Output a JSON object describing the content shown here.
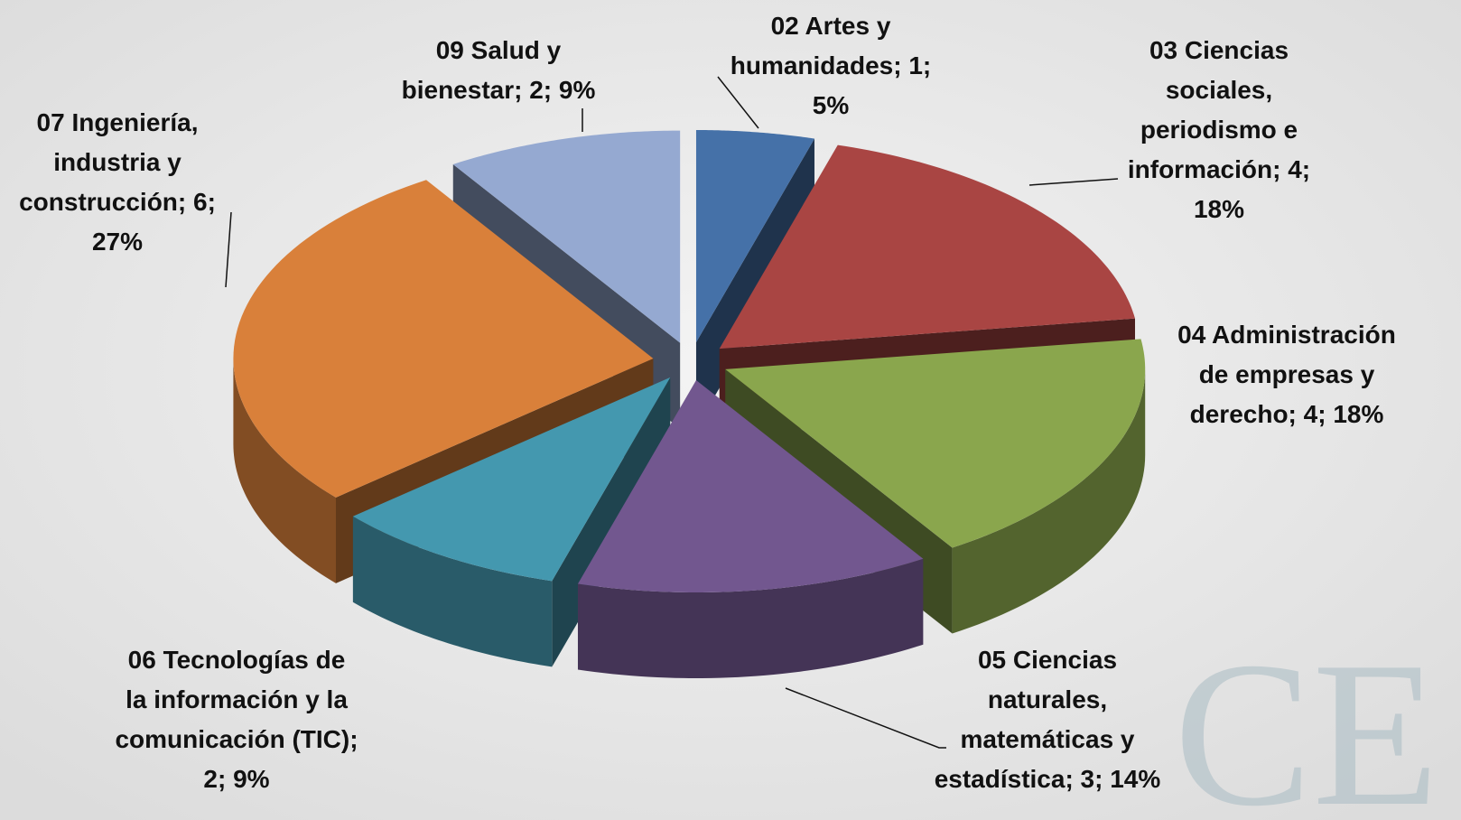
{
  "chart_data": {
    "type": "pie3d",
    "labels": [
      [
        "02 Artes y",
        "humanidades; 1;",
        "5%"
      ],
      [
        "03 Ciencias",
        "sociales,",
        "periodismo e",
        "información; 4;",
        "18%"
      ],
      [
        "04 Administración",
        "de empresas y",
        "derecho; 4; 18%"
      ],
      [
        "05 Ciencias",
        "naturales,",
        "matemáticas y",
        "estadística; 3; 14%"
      ],
      [
        "06 Tecnologías de",
        "la información y la",
        "comunicación (TIC);",
        "2; 9%"
      ],
      [
        "07 Ingeniería,",
        "industria y",
        "construcción; 6;",
        "27%"
      ],
      [
        "09 Salud y",
        "bienestar; 2; 9%"
      ]
    ],
    "values": [
      1,
      4,
      4,
      3,
      2,
      6,
      2
    ],
    "colors": [
      "#4571a8",
      "#a94543",
      "#8aa64d",
      "#72578f",
      "#4498af",
      "#d9803a",
      "#95a9d1"
    ],
    "watermark": "CE"
  }
}
